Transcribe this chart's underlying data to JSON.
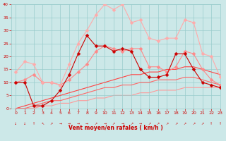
{
  "background_color": "#cce8e8",
  "grid_color": "#99cccc",
  "text_color": "#cc0000",
  "xlabel": "Vent moyen/en rafales ( km/h )",
  "xlim": [
    -0.5,
    23
  ],
  "ylim": [
    0,
    40
  ],
  "xticks": [
    0,
    1,
    2,
    3,
    4,
    5,
    6,
    7,
    8,
    9,
    10,
    11,
    12,
    13,
    14,
    15,
    16,
    17,
    18,
    19,
    20,
    21,
    22,
    23
  ],
  "yticks": [
    0,
    5,
    10,
    15,
    20,
    25,
    30,
    35,
    40
  ],
  "series": [
    {
      "note": "light pink jagged with diamonds - top series",
      "x": [
        0,
        1,
        2,
        3,
        4,
        5,
        6,
        7,
        8,
        9,
        10,
        11,
        12,
        13,
        14,
        15,
        16,
        17,
        18,
        19,
        20,
        21,
        22,
        23
      ],
      "y": [
        14,
        18,
        17,
        10,
        10,
        9,
        17,
        25,
        30,
        36,
        40,
        38,
        40,
        33,
        34,
        27,
        26,
        27,
        27,
        34,
        33,
        21,
        20,
        12
      ],
      "color": "#ffaaaa",
      "lw": 0.8,
      "marker": "D",
      "ms": 2.5,
      "zorder": 4
    },
    {
      "note": "medium pink jagged with diamonds",
      "x": [
        0,
        1,
        2,
        3,
        4,
        5,
        6,
        7,
        8,
        9,
        10,
        11,
        12,
        13,
        14,
        15,
        16,
        17,
        18,
        19,
        20,
        21,
        22,
        23
      ],
      "y": [
        10,
        11,
        13,
        10,
        10,
        9,
        11,
        14,
        17,
        22,
        24,
        23,
        22,
        23,
        23,
        16,
        16,
        14,
        16,
        22,
        21,
        15,
        11,
        9
      ],
      "color": "#ff8888",
      "lw": 0.8,
      "marker": "D",
      "ms": 2.5,
      "zorder": 3
    },
    {
      "note": "dark red jagged with diamonds - most variable",
      "x": [
        0,
        1,
        2,
        3,
        4,
        5,
        6,
        7,
        8,
        9,
        10,
        11,
        12,
        13,
        14,
        15,
        16,
        17,
        18,
        19,
        20,
        21,
        22,
        23
      ],
      "y": [
        10,
        10,
        1,
        1,
        3,
        7,
        13,
        21,
        28,
        24,
        24,
        22,
        23,
        22,
        15,
        12,
        12,
        13,
        21,
        21,
        15,
        10,
        9,
        8
      ],
      "color": "#cc0000",
      "lw": 0.8,
      "marker": "D",
      "ms": 2.5,
      "zorder": 5
    },
    {
      "note": "smooth trend line 1 - upper",
      "x": [
        0,
        1,
        2,
        3,
        4,
        5,
        6,
        7,
        8,
        9,
        10,
        11,
        12,
        13,
        14,
        15,
        16,
        17,
        18,
        19,
        20,
        21,
        22,
        23
      ],
      "y": [
        0,
        1,
        2,
        3,
        4,
        5,
        6,
        7,
        8,
        9,
        10,
        11,
        12,
        13,
        13,
        14,
        14,
        15,
        15,
        16,
        16,
        15,
        14,
        13
      ],
      "color": "#ff4444",
      "lw": 0.8,
      "marker": null,
      "ms": 0,
      "zorder": 2
    },
    {
      "note": "smooth trend line 2 - middle",
      "x": [
        0,
        1,
        2,
        3,
        4,
        5,
        6,
        7,
        8,
        9,
        10,
        11,
        12,
        13,
        14,
        15,
        16,
        17,
        18,
        19,
        20,
        21,
        22,
        23
      ],
      "y": [
        0,
        0,
        1,
        2,
        3,
        3,
        4,
        5,
        6,
        7,
        8,
        8,
        9,
        9,
        10,
        10,
        11,
        11,
        11,
        12,
        12,
        11,
        10,
        9
      ],
      "color": "#ff6666",
      "lw": 0.8,
      "marker": null,
      "ms": 0,
      "zorder": 2
    },
    {
      "note": "smooth trend line 3 - lower",
      "x": [
        0,
        1,
        2,
        3,
        4,
        5,
        6,
        7,
        8,
        9,
        10,
        11,
        12,
        13,
        14,
        15,
        16,
        17,
        18,
        19,
        20,
        21,
        22,
        23
      ],
      "y": [
        0,
        0,
        0,
        1,
        1,
        2,
        2,
        3,
        3,
        4,
        4,
        5,
        5,
        5,
        6,
        6,
        7,
        7,
        7,
        8,
        8,
        8,
        8,
        8
      ],
      "color": "#ff9999",
      "lw": 0.8,
      "marker": null,
      "ms": 0,
      "zorder": 1
    }
  ]
}
